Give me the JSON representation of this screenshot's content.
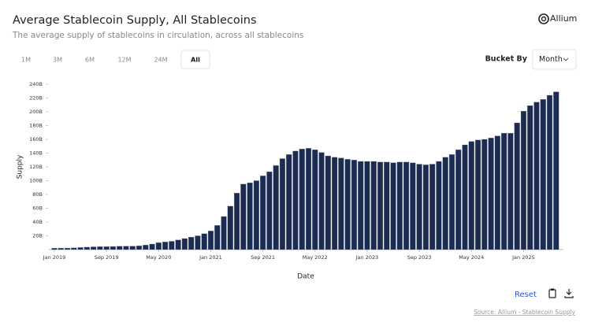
{
  "header": {
    "title": "Average Stablecoin Supply, All Stablecoins",
    "subtitle": "The average supply of stablecoins in circulation, across all stablecoins",
    "brand": "Allium"
  },
  "controls": {
    "ranges": [
      "1M",
      "3M",
      "6M",
      "12M",
      "24M",
      "All"
    ],
    "selected_range": "All",
    "bucket_label": "Bucket By",
    "bucket_value": "Month",
    "reset": "Reset"
  },
  "footer": {
    "source": "Source: Allium - Stablecoin Supply"
  },
  "chart_data": {
    "type": "bar",
    "color": "#1c2b52",
    "ylabel": "Supply",
    "xlabel": "Date",
    "categories": [
      "Jan 2019",
      null,
      null,
      null,
      null,
      null,
      null,
      null,
      "Sep 2019",
      null,
      null,
      null,
      null,
      null,
      null,
      null,
      "May 2020",
      null,
      null,
      null,
      null,
      null,
      null,
      null,
      "Jan 2021",
      null,
      null,
      null,
      null,
      null,
      null,
      null,
      "Sep 2021",
      null,
      null,
      null,
      null,
      null,
      null,
      null,
      "May 2022",
      null,
      null,
      null,
      null,
      null,
      null,
      null,
      "Jan 2023",
      null,
      null,
      null,
      null,
      null,
      null,
      null,
      "Sep 2023",
      null,
      null,
      null,
      null,
      null,
      null,
      null,
      "May 2024",
      null,
      null,
      null,
      null,
      null,
      null,
      null,
      "Jan 2025",
      null,
      null,
      null,
      null,
      null
    ],
    "values": [
      2,
      2,
      2.2,
      2.5,
      3,
      3.5,
      4,
      4.2,
      4.3,
      4.5,
      4.8,
      5,
      5,
      5.5,
      6.5,
      8,
      10,
      11,
      12,
      14,
      16,
      18,
      20,
      23,
      27,
      35,
      48,
      63,
      82,
      95,
      97,
      100,
      107,
      113,
      122,
      132,
      138,
      143,
      146,
      147,
      145,
      141,
      136,
      134,
      133,
      131,
      130,
      128,
      128,
      128,
      127,
      127,
      126,
      127,
      127,
      126,
      124,
      123,
      124,
      128,
      134,
      138,
      145,
      152,
      157,
      159,
      160,
      162,
      165,
      169,
      169,
      184,
      201,
      209,
      214,
      218,
      224,
      229
    ],
    "ylim": [
      0,
      240
    ],
    "yticks": [
      {
        "value": 20,
        "label": "20B"
      },
      {
        "value": 40,
        "label": "40B"
      },
      {
        "value": 60,
        "label": "60B"
      },
      {
        "value": 80,
        "label": "80B"
      },
      {
        "value": 100,
        "label": "100B"
      },
      {
        "value": 120,
        "label": "120B"
      },
      {
        "value": 140,
        "label": "140B"
      },
      {
        "value": 160,
        "label": "160B"
      },
      {
        "value": 180,
        "label": "180B"
      },
      {
        "value": 200,
        "label": "200B"
      },
      {
        "value": 220,
        "label": "220B"
      },
      {
        "value": 240,
        "label": "240B"
      }
    ],
    "grid": false
  }
}
